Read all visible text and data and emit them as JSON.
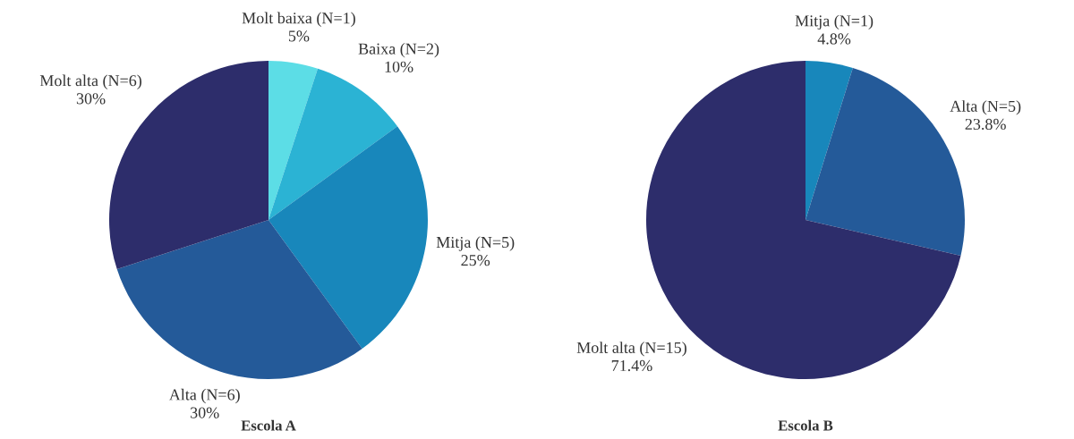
{
  "chart_data": [
    {
      "type": "pie",
      "title": "Escola A",
      "categories": [
        "Molt baixa (N=1)",
        "Baixa (N=2)",
        "Mitja (N=5)",
        "Alta (N=6)",
        "Molt alta (N=6)"
      ],
      "values": [
        5,
        10,
        25,
        30,
        30
      ],
      "value_labels": [
        "5%",
        "10%",
        "25%",
        "30%",
        "30%"
      ],
      "colors": [
        "#5cdde6",
        "#2bb3d4",
        "#1887bb",
        "#245a99",
        "#2d2d6b"
      ]
    },
    {
      "type": "pie",
      "title": "Escola B",
      "categories": [
        "Mitja (N=1)",
        "Alta (N=5)",
        "Molt alta (N=15)"
      ],
      "values": [
        4.8,
        23.8,
        71.4
      ],
      "value_labels": [
        "4.8%",
        "23.8%",
        "71.4%"
      ],
      "colors": [
        "#1887bb",
        "#245a99",
        "#2d2d6b"
      ]
    }
  ]
}
